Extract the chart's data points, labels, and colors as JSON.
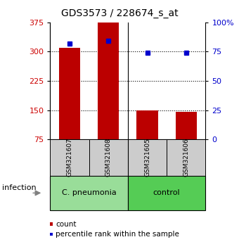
{
  "title": "GDS3573 / 228674_s_at",
  "categories": [
    "GSM321607",
    "GSM321608",
    "GSM321605",
    "GSM321606"
  ],
  "bar_values": [
    310,
    375,
    150,
    146
  ],
  "bar_bottom": 75,
  "percentile_values": [
    82,
    84,
    74,
    74
  ],
  "bar_color": "#bb0000",
  "percentile_color": "#0000cc",
  "left_ylim": [
    75,
    375
  ],
  "right_ylim": [
    0,
    100
  ],
  "left_yticks": [
    75,
    150,
    225,
    300,
    375
  ],
  "right_yticks": [
    0,
    25,
    50,
    75,
    100
  ],
  "right_yticklabels": [
    "0",
    "25",
    "50",
    "75",
    "100%"
  ],
  "grid_lines": [
    150,
    225,
    300
  ],
  "groups": [
    {
      "label": "C. pneumonia",
      "span": [
        0,
        2
      ],
      "color": "#99dd99"
    },
    {
      "label": "control",
      "span": [
        2,
        4
      ],
      "color": "#55cc55"
    }
  ],
  "group_row_label": "infection",
  "legend_items": [
    {
      "label": "count",
      "color": "#bb0000"
    },
    {
      "label": "percentile rank within the sample",
      "color": "#0000cc"
    }
  ],
  "background_color": "#ffffff",
  "sample_area_color": "#cccccc",
  "bar_width": 0.55
}
